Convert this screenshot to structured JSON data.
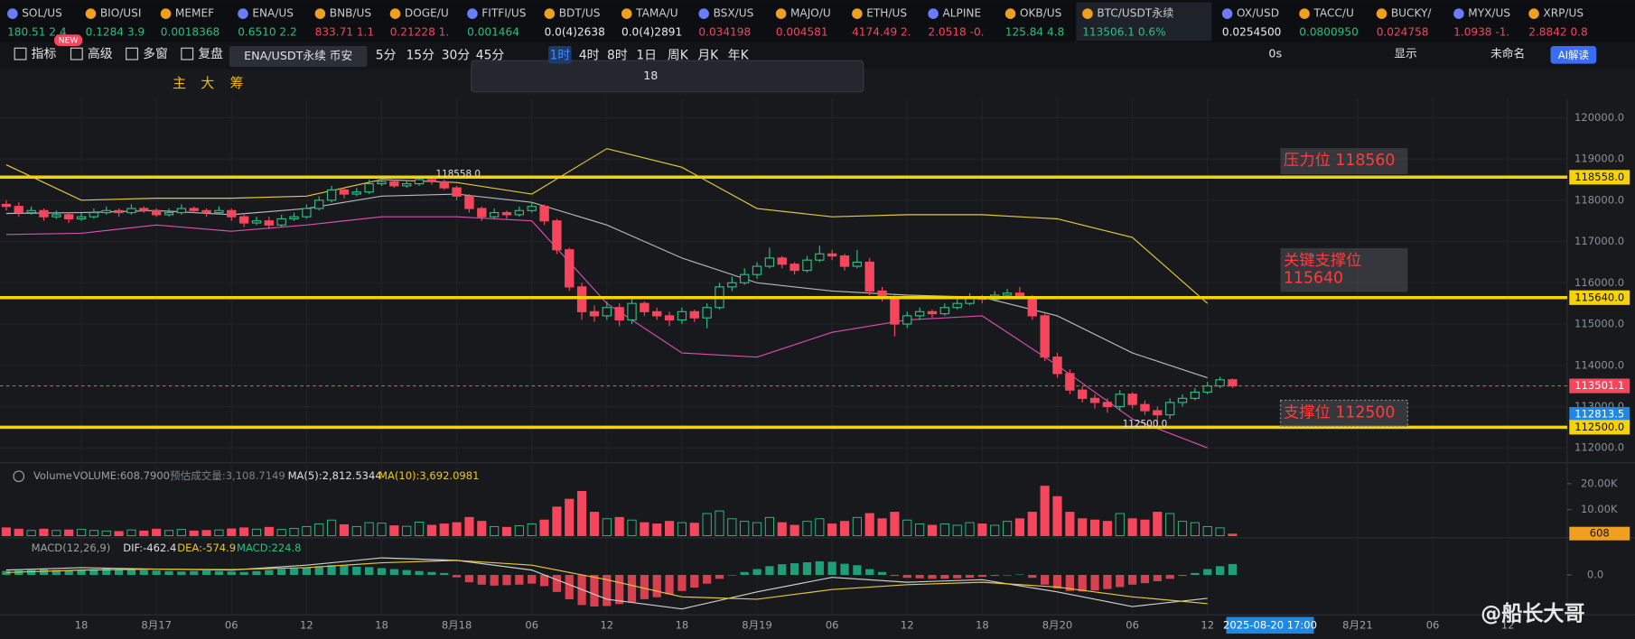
{
  "tickers": [
    {
      "name": "SOL/US",
      "price": "180.51 2.4",
      "color": "#2ebd85"
    },
    {
      "name": "BIO/USI",
      "price": "0.1284 3.9",
      "color": "#2ebd85"
    },
    {
      "name": "MEMEF",
      "price": "0.0018368",
      "color": "#2ebd85"
    },
    {
      "name": "ENA/US",
      "price": "0.6510 2.2",
      "color": "#2ebd85"
    },
    {
      "name": "BNB/US",
      "price": "833.71 1.1",
      "color": "#f6465d"
    },
    {
      "name": "DOGE/U",
      "price": "0.21228 1.",
      "color": "#f6465d"
    },
    {
      "name": "FITFI/US",
      "price": "0.001464",
      "color": "#2ebd85"
    },
    {
      "name": "BDT/US",
      "price": "0.0(4)2638",
      "color": "#eaecef"
    },
    {
      "name": "TAMA/U",
      "price": "0.0(4)2891",
      "color": "#eaecef"
    },
    {
      "name": "BSX/US",
      "price": "0.034198",
      "color": "#f6465d"
    },
    {
      "name": "MAJO/U",
      "price": "0.004581",
      "color": "#f6465d"
    },
    {
      "name": "ETH/US",
      "price": "4174.49 2.",
      "color": "#f6465d"
    },
    {
      "name": "ALPINE",
      "price": "2.0518 -0.",
      "color": "#f6465d"
    },
    {
      "name": "OKB/US",
      "price": "125.84 4.8",
      "color": "#2ebd85"
    },
    {
      "name": "BTC/USDT永续",
      "price": "113506.1 0.6%",
      "color": "#2ebd85"
    },
    {
      "name": "OX/USD",
      "price": "0.0254500",
      "color": "#eaecef"
    },
    {
      "name": "TACC/U",
      "price": "0.0800950",
      "color": "#2ebd85"
    },
    {
      "name": "BUCKY/",
      "price": "0.024758",
      "color": "#f6465d"
    },
    {
      "name": "MYX/US",
      "price": "1.0938 -1.",
      "color": "#f6465d"
    },
    {
      "name": "XRP/US",
      "price": "2.8842 0.8",
      "color": "#f6465d"
    }
  ],
  "active_ticker": 14,
  "toolbar": {
    "items": [
      "指标",
      "高级",
      "多窗",
      "复盘"
    ],
    "badge": "NEW",
    "tooltip": "ENA/USDT永续 币安",
    "timeframes": [
      "5分",
      "15分",
      "30分",
      "45分",
      "1时",
      "4时",
      "8时",
      "1日",
      "周K",
      "月K",
      "年K"
    ],
    "active_timeframe": 4,
    "right": [
      "0s",
      "显示",
      "未命名"
    ],
    "ai_button": "AI解读"
  },
  "drawing_bar": {
    "labels": [
      "主",
      "大",
      "筹"
    ],
    "font_size": "18"
  },
  "chart_data": {
    "type": "candlestick",
    "colors": {
      "up": "#2ebd85",
      "down": "#f6465d"
    },
    "xlim": [
      -0.5,
      124.5
    ],
    "xticks": [
      {
        "value": 6,
        "label": "18"
      },
      {
        "value": 12,
        "label": "8月17"
      },
      {
        "value": 18,
        "label": "06"
      },
      {
        "value": 24,
        "label": "12"
      },
      {
        "value": 30,
        "label": "18"
      },
      {
        "value": 36,
        "label": "8月18"
      },
      {
        "value": 42,
        "label": "06"
      },
      {
        "value": 48,
        "label": "12"
      },
      {
        "value": 54,
        "label": "18"
      },
      {
        "value": 60,
        "label": "8月19"
      },
      {
        "value": 66,
        "label": "06"
      },
      {
        "value": 72,
        "label": "12"
      },
      {
        "value": 78,
        "label": "18"
      },
      {
        "value": 84,
        "label": "8月20"
      },
      {
        "value": 90,
        "label": "06"
      },
      {
        "value": 96,
        "label": "12"
      },
      {
        "value": 108,
        "label": "8月21"
      },
      {
        "value": 114,
        "label": "06"
      },
      {
        "value": 120,
        "label": "12"
      }
    ],
    "crosshair": {
      "x": 101,
      "label": "2025-08-20 17:00"
    },
    "ylim": [
      111740,
      120450
    ],
    "yticks": [
      {
        "value": 120000,
        "label": "120000.0"
      },
      {
        "value": 119000,
        "label": "119000.0"
      },
      {
        "value": 118000,
        "label": "118000.0"
      },
      {
        "value": 117000,
        "label": "117000.0"
      },
      {
        "value": 116000,
        "label": "116000.0"
      },
      {
        "value": 115000,
        "label": "115000.0"
      },
      {
        "value": 114000,
        "label": "114000.0"
      },
      {
        "value": 113000,
        "label": "113000.0"
      },
      {
        "value": 112000,
        "label": "112000.0"
      }
    ],
    "open": [
      117900,
      117850,
      117700,
      117750,
      117600,
      117650,
      117550,
      117600,
      117700,
      117750,
      117700,
      117800,
      117750,
      117650,
      117700,
      117800,
      117750,
      117700,
      117750,
      117600,
      117450,
      117500,
      117400,
      117550,
      117600,
      117800,
      118000,
      118250,
      118150,
      118200,
      118400,
      118450,
      118350,
      118400,
      118500,
      118450,
      118300,
      118100,
      117800,
      117600,
      117700,
      117650,
      117750,
      117850,
      117500,
      116800,
      115900,
      115300,
      115200,
      115400,
      115100,
      115500,
      115300,
      115200,
      115100,
      115300,
      115150,
      115400,
      115900,
      116000,
      116200,
      116400,
      116600,
      116450,
      116300,
      116550,
      116700,
      116650,
      116400,
      116500,
      115800,
      115650,
      115000,
      115200,
      115300,
      115250,
      115400,
      115500,
      115650,
      115600,
      115700,
      115750,
      115650,
      115200,
      114200,
      113800,
      113400,
      113200,
      113100,
      113000,
      113300,
      113050,
      112900,
      112800,
      113100,
      113200,
      113350,
      113500,
      113650
    ],
    "high": [
      118000,
      117950,
      117850,
      117800,
      117750,
      117700,
      117700,
      117800,
      117850,
      117800,
      117900,
      117850,
      117800,
      117800,
      117900,
      117850,
      117800,
      117850,
      117800,
      117650,
      117600,
      117600,
      117650,
      117700,
      117900,
      118100,
      118350,
      118300,
      118300,
      118500,
      118520,
      118500,
      118480,
      118558,
      118540,
      118500,
      118350,
      118150,
      117850,
      117800,
      117750,
      117850,
      117950,
      117900,
      117550,
      116850,
      116000,
      115450,
      115550,
      115500,
      115600,
      115550,
      115400,
      115300,
      115400,
      115350,
      115500,
      116000,
      116150,
      116350,
      116500,
      116850,
      116650,
      116500,
      116650,
      116900,
      116800,
      116700,
      116800,
      116600,
      115900,
      115700,
      115300,
      115400,
      115350,
      115500,
      115600,
      115750,
      115700,
      115800,
      115850,
      115900,
      115700,
      115250,
      114300,
      113900,
      113500,
      113300,
      113200,
      113400,
      113350,
      113150,
      113000,
      113200,
      113300,
      113450,
      113600,
      113720,
      113680
    ],
    "low": [
      117750,
      117600,
      117650,
      117500,
      117550,
      117450,
      117500,
      117550,
      117650,
      117600,
      117650,
      117700,
      117600,
      117600,
      117650,
      117700,
      117600,
      117650,
      117500,
      117350,
      117400,
      117300,
      117350,
      117500,
      117550,
      117750,
      117950,
      118050,
      118100,
      118150,
      118350,
      118300,
      118300,
      118350,
      118380,
      118250,
      118000,
      117700,
      117500,
      117550,
      117550,
      117600,
      117700,
      117400,
      116700,
      115800,
      115100,
      115050,
      115100,
      114950,
      115000,
      115200,
      115100,
      114950,
      115000,
      115050,
      114900,
      115350,
      115800,
      115950,
      116100,
      116350,
      116350,
      116200,
      116250,
      116500,
      116550,
      116300,
      116350,
      115700,
      115550,
      114700,
      114900,
      115100,
      115150,
      115200,
      115350,
      115450,
      115500,
      115550,
      115650,
      115600,
      115100,
      114100,
      113700,
      113300,
      113100,
      112950,
      112850,
      112900,
      112950,
      112800,
      112500,
      112700,
      113000,
      113150,
      113300,
      113450,
      113450
    ],
    "close": [
      117850,
      117700,
      117750,
      117600,
      117650,
      117550,
      117600,
      117700,
      117750,
      117700,
      117800,
      117750,
      117650,
      117700,
      117800,
      117750,
      117700,
      117750,
      117600,
      117450,
      117500,
      117400,
      117550,
      117600,
      117800,
      118000,
      118250,
      118150,
      118200,
      118400,
      118450,
      118350,
      118400,
      118500,
      118450,
      118300,
      118100,
      117800,
      117600,
      117700,
      117650,
      117750,
      117850,
      117500,
      116800,
      115900,
      115300,
      115200,
      115400,
      115100,
      115500,
      115300,
      115200,
      115100,
      115300,
      115150,
      115400,
      115900,
      116000,
      116200,
      116400,
      116600,
      116450,
      116300,
      116550,
      116700,
      116650,
      116400,
      116500,
      115800,
      115650,
      115000,
      115200,
      115300,
      115250,
      115400,
      115500,
      115650,
      115600,
      115700,
      115750,
      115650,
      115200,
      114200,
      113800,
      113400,
      113200,
      113100,
      113000,
      113300,
      113050,
      112900,
      112800,
      113100,
      113200,
      113350,
      113500,
      113650,
      113501
    ],
    "bollinger": {
      "x": [
        0,
        6,
        12,
        18,
        24,
        30,
        36,
        42,
        48,
        54,
        60,
        66,
        72,
        78,
        84,
        90,
        96
      ],
      "upper": [
        118860,
        118000,
        118050,
        118050,
        118100,
        118500,
        118430,
        118150,
        119250,
        118800,
        117800,
        117600,
        117650,
        117650,
        117550,
        117100,
        115500
      ],
      "middle": [
        117680,
        117700,
        117750,
        117650,
        117800,
        118100,
        118150,
        117950,
        117400,
        116600,
        116000,
        115800,
        115700,
        115650,
        115200,
        114300,
        113700
      ],
      "lower": [
        117170,
        117200,
        117400,
        117250,
        117400,
        117600,
        117600,
        117500,
        115500,
        114300,
        114200,
        114800,
        115100,
        115200,
        114000,
        112700,
        112000
      ],
      "colors": {
        "upper": "#e6c83c",
        "middle": "#b8b8b8",
        "lower": "#d94fb0"
      }
    },
    "levels": [
      {
        "value": 118560,
        "label_lines": [
          "压力位 118560"
        ]
      },
      {
        "value": 115640,
        "label_lines": [
          "关键支撑位",
          "115640"
        ]
      },
      {
        "value": 112500,
        "label_lines": [
          "支撑位 112500"
        ]
      }
    ],
    "level_color": "#f5d20a",
    "level_text_color": "#ff3b3b",
    "annotations": [
      {
        "x": 33,
        "value": 118558,
        "label": "118558.0"
      },
      {
        "x": 92,
        "value": 112500,
        "label": "112500.0"
      }
    ],
    "current_price": 113501.1,
    "price_markers": [
      {
        "value": 118558,
        "label": "118558.0",
        "bg": "#f5d20a",
        "fg": "#111"
      },
      {
        "value": 115640,
        "label": "115640.0",
        "bg": "#f5d20a",
        "fg": "#111"
      },
      {
        "value": 113501.1,
        "label": "113501.1",
        "bg": "#f6465d",
        "fg": "#fff"
      },
      {
        "value": 112813.5,
        "label": "112813.5",
        "bg": "#1e88e5",
        "fg": "#fff"
      },
      {
        "value": 112500,
        "label": "112500.0",
        "bg": "#f5d20a",
        "fg": "#111"
      }
    ],
    "volume": {
      "legend": [
        {
          "text": "Volume",
          "color": "#9aa0a6"
        },
        {
          "text": "VOLUME:608.7900",
          "color": "#9aa0a6"
        },
        {
          "text": "预估成交量:3,108.7149",
          "color": "#7a8088"
        },
        {
          "text": "MA(5):2,812.5344",
          "color": "#e0e0e0"
        },
        {
          "text": "MA(10):3,692.0981",
          "color": "#f0c81e"
        }
      ],
      "values": [
        3000,
        2500,
        2000,
        2500,
        2000,
        2200,
        2400,
        2000,
        1800,
        1600,
        2200,
        1800,
        2500,
        2000,
        2400,
        1800,
        2000,
        2200,
        2600,
        3000,
        2500,
        3200,
        2400,
        2800,
        3500,
        4500,
        6000,
        4200,
        3500,
        5000,
        4800,
        3800,
        3600,
        5200,
        4000,
        4500,
        5000,
        7000,
        5500,
        3500,
        3200,
        3800,
        4500,
        6000,
        11000,
        14000,
        17000,
        9000,
        6500,
        7000,
        6000,
        5000,
        4500,
        5500,
        5000,
        4800,
        8500,
        9500,
        6500,
        5500,
        5000,
        7000,
        5000,
        4000,
        5500,
        6500,
        4500,
        5500,
        7000,
        8500,
        6500,
        9000,
        6000,
        4500,
        4000,
        4500,
        4000,
        5000,
        4500,
        4000,
        5500,
        6500,
        9000,
        19000,
        15000,
        9000,
        6500,
        6000,
        5500,
        8500,
        6500,
        6000,
        9000,
        8500,
        5500,
        5000,
        3500,
        3000,
        608.79
      ],
      "ylim": [
        0,
        26400
      ],
      "yticks": [
        {
          "value": 20000,
          "label": "20.00K"
        },
        {
          "value": 10000,
          "label": "10.00K"
        }
      ],
      "marker": {
        "value": 608.79,
        "label": "608",
        "bg": "#f0a020"
      }
    },
    "macd": {
      "legend": [
        {
          "text": "MACD(12,26,9)",
          "color": "#9aa0a6"
        },
        {
          "text": "DIF:-462.4",
          "color": "#e0e0e0"
        },
        {
          "text": "DEA:-574.9",
          "color": "#f0c81e"
        },
        {
          "text": "MACD:224.8",
          "color": "#2ebd85"
        }
      ],
      "histogram": [
        80,
        90,
        100,
        110,
        100,
        90,
        100,
        120,
        130,
        120,
        110,
        100,
        90,
        80,
        70,
        80,
        90,
        80,
        70,
        60,
        80,
        100,
        120,
        130,
        150,
        180,
        200,
        190,
        170,
        160,
        140,
        120,
        100,
        80,
        60,
        40,
        -50,
        -150,
        -200,
        -220,
        -210,
        -200,
        -180,
        -230,
        -350,
        -500,
        -620,
        -650,
        -640,
        -600,
        -560,
        -500,
        -460,
        -400,
        -330,
        -260,
        -180,
        -80,
        0,
        60,
        120,
        180,
        220,
        240,
        260,
        280,
        270,
        230,
        200,
        120,
        60,
        -20,
        -60,
        -70,
        -80,
        -80,
        -70,
        -60,
        -40,
        -20,
        0,
        10,
        -60,
        -200,
        -280,
        -330,
        -340,
        -320,
        -290,
        -250,
        -200,
        -170,
        -130,
        -80,
        -20,
        40,
        120,
        180,
        224.8
      ],
      "x": [
        0,
        6,
        12,
        18,
        24,
        30,
        36,
        42,
        48,
        54,
        60,
        66,
        72,
        78,
        84,
        90,
        96
      ],
      "dif": [
        100,
        150,
        120,
        100,
        200,
        350,
        300,
        100,
        -500,
        -700,
        -350,
        -50,
        -150,
        -100,
        -350,
        -650,
        -480
      ],
      "dea": [
        50,
        100,
        120,
        110,
        150,
        250,
        300,
        200,
        -100,
        -450,
        -500,
        -300,
        -200,
        -150,
        -250,
        -450,
        -590
      ],
      "line_colors": {
        "dif": "#d0d0d0",
        "dea": "#e6c83c"
      },
      "ylim": [
        -800,
        700
      ],
      "yticks": [
        {
          "value": 0,
          "label": "0.0"
        }
      ]
    }
  },
  "watermark": "@船长大哥"
}
